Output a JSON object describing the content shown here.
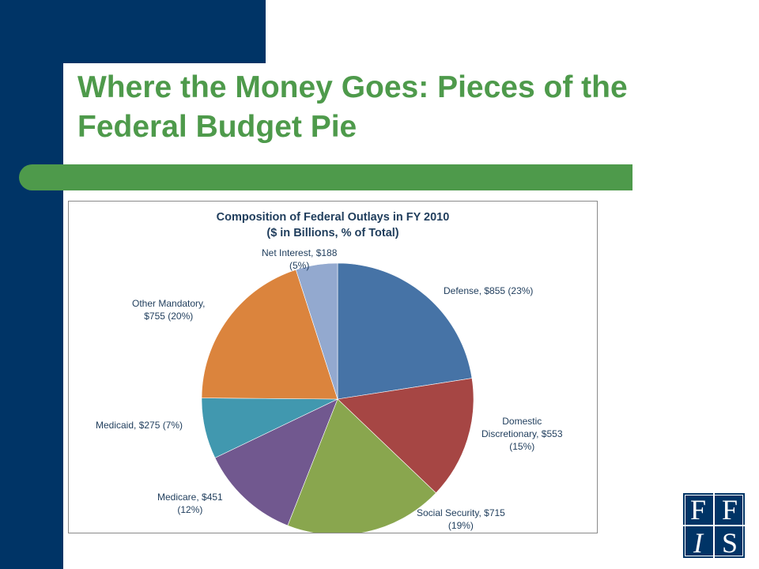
{
  "slide": {
    "title_line1": "Where the Money Goes: Pieces of the",
    "title_line2": "Federal Budget Pie"
  },
  "colors": {
    "navy": "#003466",
    "green": "#4e9a4b",
    "label_text": "#1f3d5c"
  },
  "chart_data": {
    "type": "pie",
    "title": "Composition of Federal Outlays in FY 2010",
    "subtitle": "($ in Billions, % of Total)",
    "start": "12 o'clock",
    "direction": "clockwise",
    "slices": [
      {
        "key": "defense",
        "name": "Defense",
        "value": 855,
        "percent": 23,
        "color": "#4673a6",
        "label_lines": [
          "Defense, $855 (23%)"
        ]
      },
      {
        "key": "domestic",
        "name": "Domestic Discretionary",
        "value": 553,
        "percent": 15,
        "color": "#a64644",
        "label_lines": [
          "Domestic",
          "Discretionary, $553",
          "(15%)"
        ]
      },
      {
        "key": "social_security",
        "name": "Social Security",
        "value": 715,
        "percent": 19,
        "color": "#89a64e",
        "label_lines": [
          "Social Security,  $715",
          "(19%)"
        ]
      },
      {
        "key": "medicare",
        "name": "Medicare",
        "value": 451,
        "percent": 12,
        "color": "#71588f",
        "label_lines": [
          "Medicare, $451",
          "(12%)"
        ]
      },
      {
        "key": "medicaid",
        "name": "Medicaid",
        "value": 275,
        "percent": 7,
        "color": "#4198af",
        "label_lines": [
          "Medicaid,  $275 (7%)"
        ]
      },
      {
        "key": "other_mandatory",
        "name": "Other Mandatory",
        "value": 755,
        "percent": 20,
        "color": "#db843d",
        "label_lines": [
          "Other Mandatory,",
          "$755 (20%)"
        ]
      },
      {
        "key": "net_interest",
        "name": "Net Interest",
        "value": 188,
        "percent": 5,
        "color": "#93a9cf",
        "label_lines": [
          "Net Interest, $188",
          "(5%)"
        ]
      }
    ]
  },
  "logo": {
    "letters": [
      "F",
      "F",
      "I",
      "S"
    ]
  }
}
